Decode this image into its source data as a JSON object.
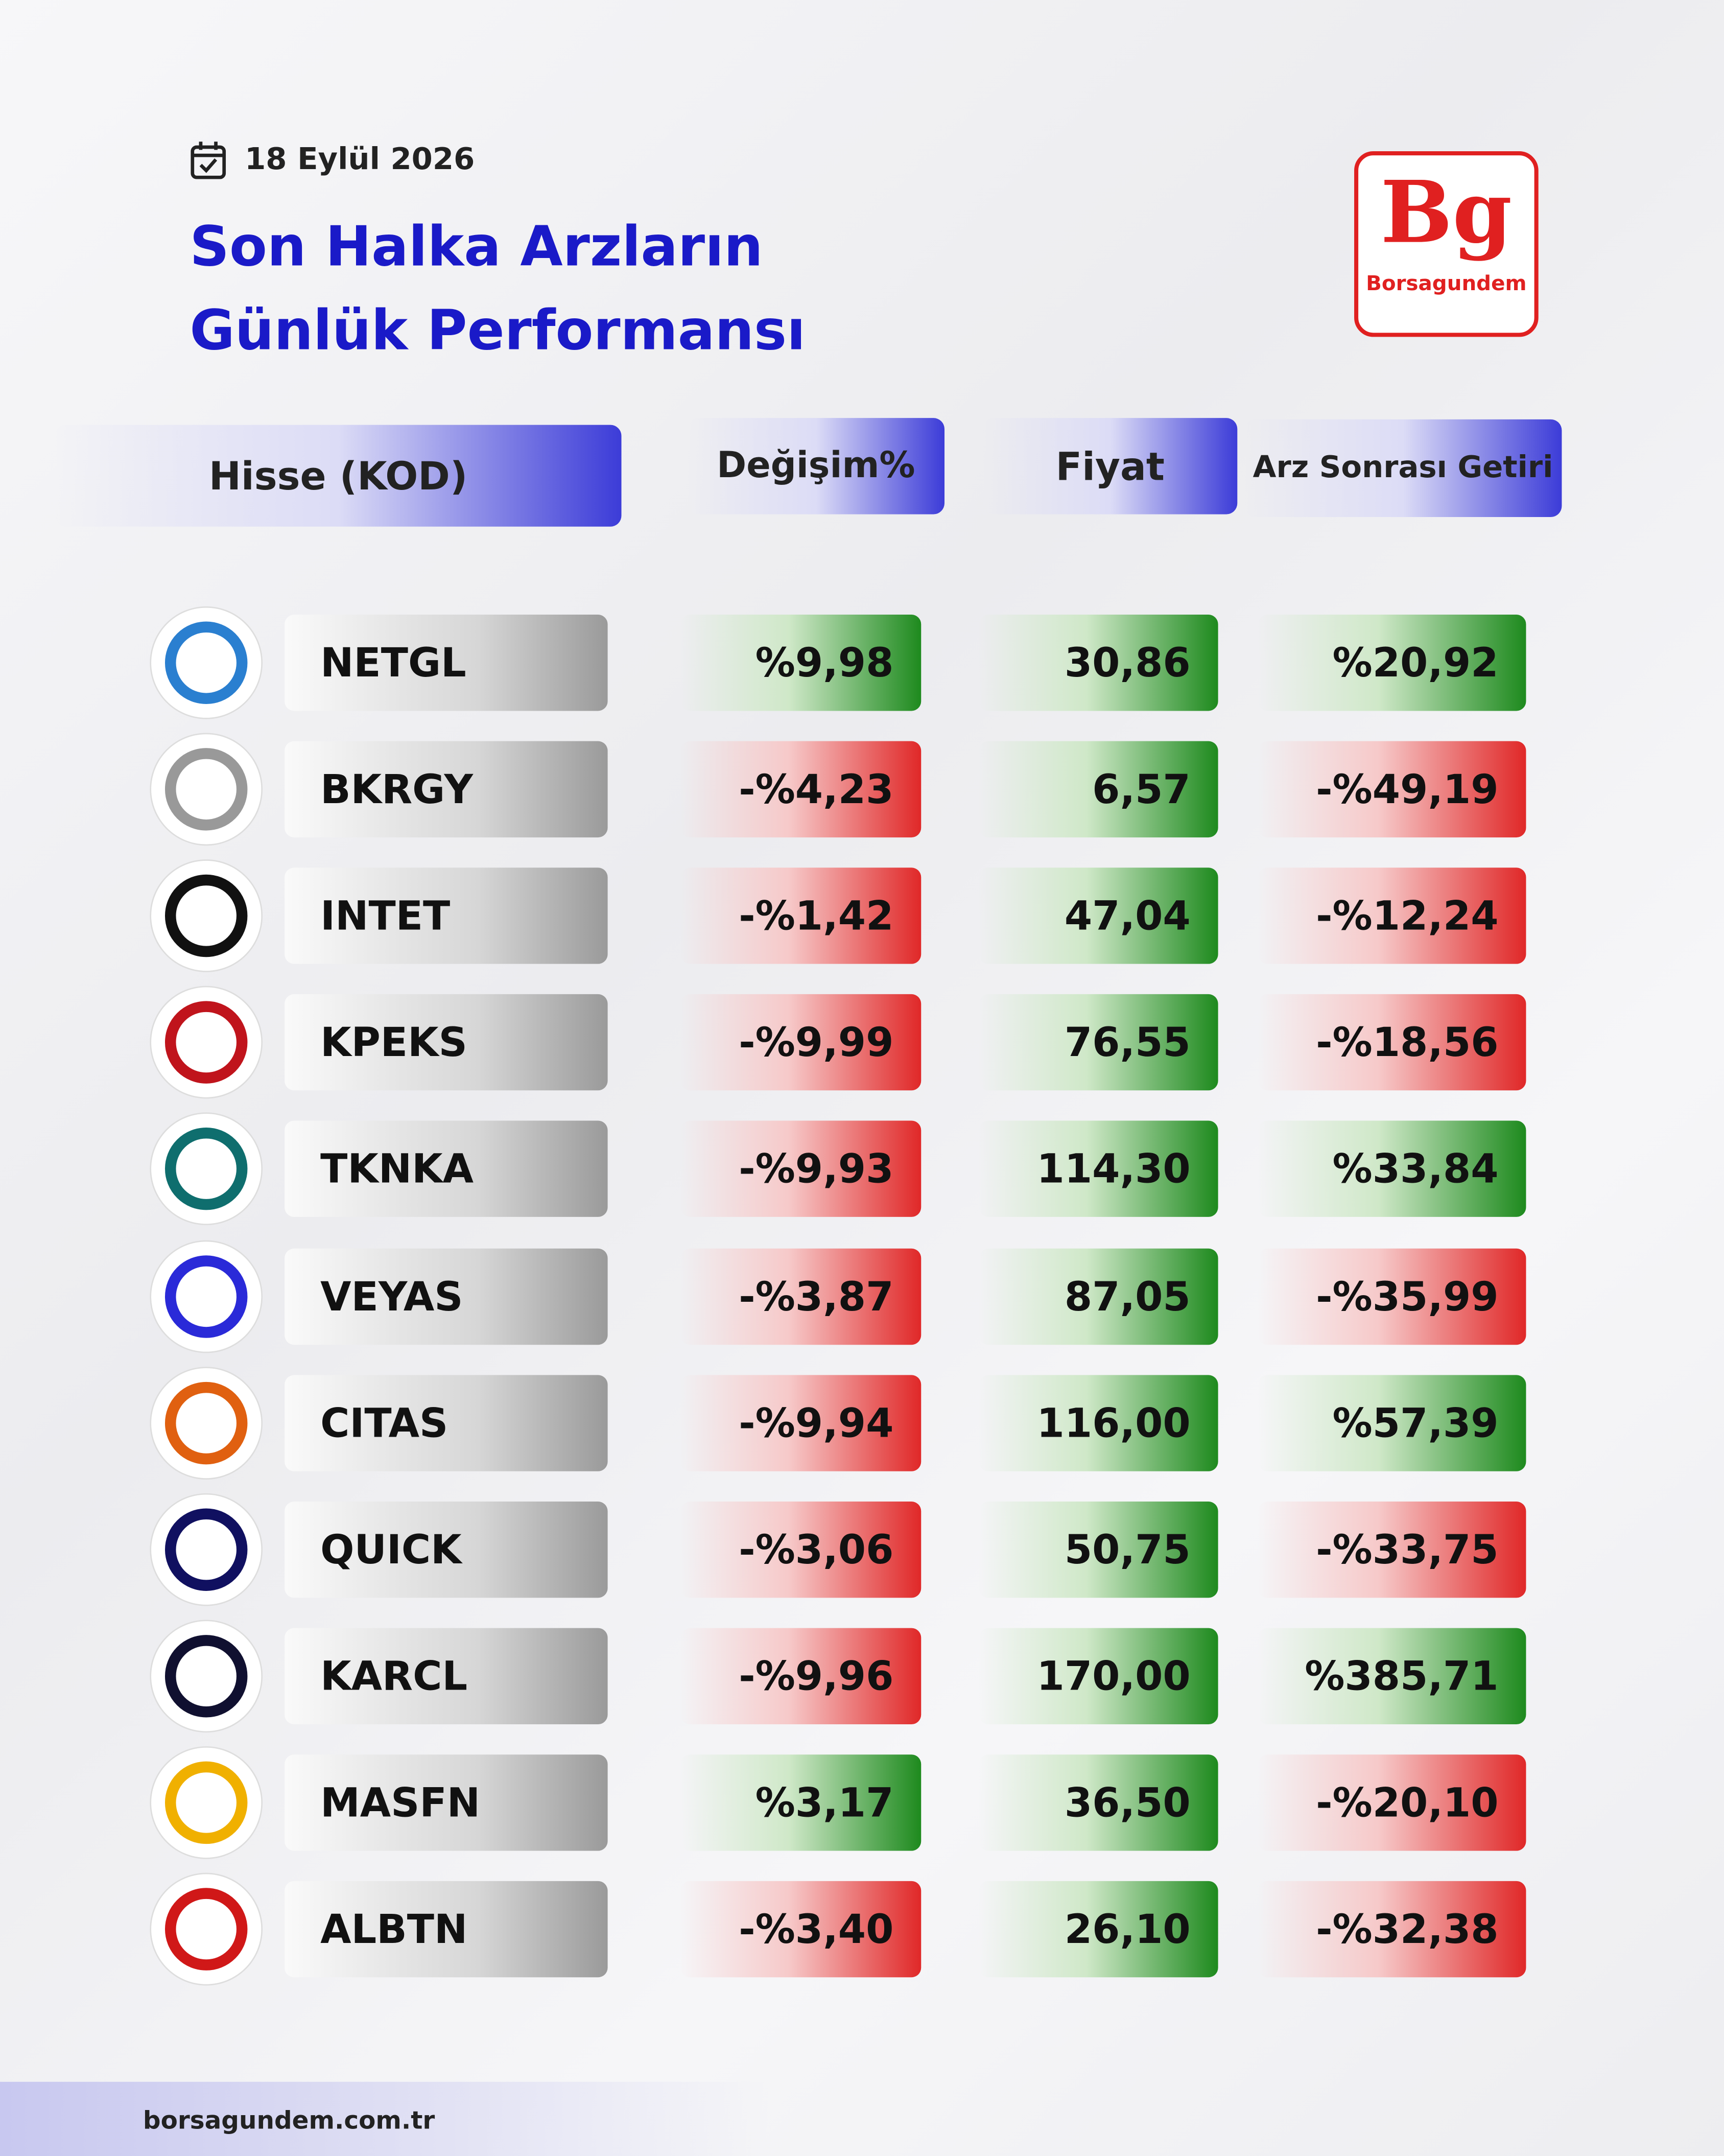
{
  "header": {
    "date": "18 Eylül 2026",
    "title_line1": "Son Halka Arzların",
    "title_line2": "Günlük Performansı"
  },
  "logo": {
    "mark": "Bg",
    "name": "Borsagundem"
  },
  "table": {
    "columns": [
      "Hisse (KOD)",
      "Değişim%",
      "Fiyat",
      "Arz Sonrası Getiri"
    ],
    "rows": [
      [
        "NETGL",
        "%9,98",
        "30,86",
        "%20,92"
      ],
      [
        "BKRGY",
        "-%4,23",
        "6,57",
        "-%49,19"
      ],
      [
        "INTET",
        "-%1,42",
        "47,04",
        "-%12,24"
      ],
      [
        "KPEKS",
        "-%9,99",
        "76,55",
        "-%18,56"
      ],
      [
        "TKNKA",
        "-%9,93",
        "114,30",
        "%33,84"
      ],
      [
        "VEYAS",
        "-%3,87",
        "87,05",
        "-%35,99"
      ],
      [
        "CITAS",
        "-%9,94",
        "116,00",
        "%57,39"
      ],
      [
        "QUICK",
        "-%3,06",
        "50,75",
        "-%33,75"
      ],
      [
        "KARCL",
        "-%9,96",
        "170,00",
        "%385,71"
      ],
      [
        "MASFN",
        "%3,17",
        "36,50",
        "-%20,10"
      ],
      [
        "ALBTN",
        "-%3,40",
        "26,10",
        "-%32,38"
      ]
    ]
  },
  "footer": {
    "site": "borsagundem.com.tr"
  }
}
